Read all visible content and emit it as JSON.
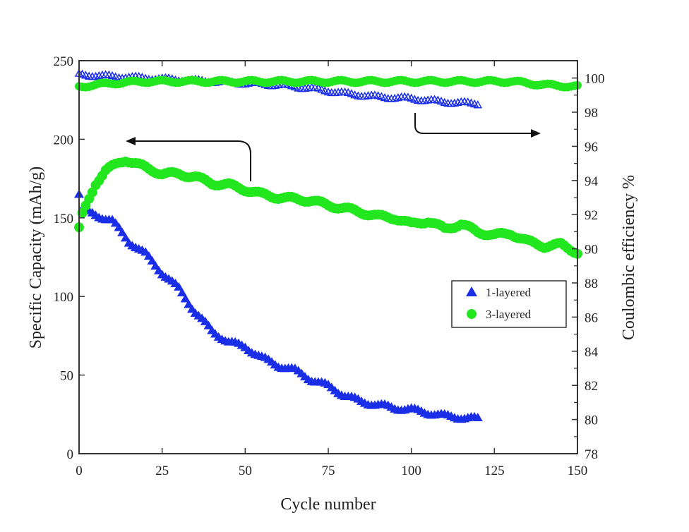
{
  "chart_data": {
    "type": "scatter",
    "xlabel": "Cycle number",
    "ylabel": "Specific Capacity (mAh/g)",
    "y2label": "Coulombic efficiency %",
    "xlim": [
      0,
      150
    ],
    "ylim": [
      0,
      250
    ],
    "y2lim": [
      78,
      101.2
    ],
    "xticks": [
      0,
      25,
      50,
      75,
      100,
      125,
      150
    ],
    "yticks": [
      0,
      50,
      100,
      150,
      200,
      250
    ],
    "y2ticks": [
      78,
      80,
      82,
      84,
      86,
      88,
      90,
      92,
      94,
      96,
      98,
      100
    ],
    "legend": {
      "placement": "center-right",
      "entries": [
        "1-layered",
        "3-layered"
      ]
    },
    "colors": {
      "1-layered": "#1a2ee8",
      "3-layered": "#22e61e"
    },
    "series": [
      {
        "name": "1-layered",
        "axis": "capacity",
        "marker": "triangle",
        "x": [
          0,
          1,
          5,
          10,
          15,
          20,
          25,
          30,
          35,
          40,
          45,
          50,
          55,
          60,
          65,
          70,
          75,
          80,
          85,
          90,
          95,
          100,
          105,
          110,
          115,
          120
        ],
        "y": [
          165,
          155,
          152,
          148,
          135,
          127,
          115,
          105,
          90,
          78,
          71,
          68,
          61,
          56,
          53,
          47,
          43,
          37,
          33,
          31,
          29,
          28,
          26,
          24,
          23,
          22
        ]
      },
      {
        "name": "3-layered",
        "axis": "capacity",
        "marker": "circle",
        "x": [
          0,
          1,
          3,
          5,
          8,
          12,
          14,
          20,
          25,
          30,
          35,
          40,
          45,
          50,
          55,
          60,
          70,
          75,
          80,
          90,
          95,
          100,
          105,
          110,
          115,
          120,
          125,
          130,
          135,
          140,
          145,
          150
        ],
        "y": [
          143,
          152,
          162,
          172,
          180,
          185,
          187,
          182,
          178,
          178,
          176,
          172,
          171,
          168,
          165,
          163,
          161,
          158,
          156,
          151,
          150,
          146,
          148,
          143,
          146,
          141,
          139,
          140,
          135,
          132,
          133,
          128
        ]
      },
      {
        "name": "1-layered",
        "axis": "efficiency",
        "marker": "open-triangle",
        "x": [
          0,
          10,
          20,
          30,
          40,
          50,
          60,
          70,
          80,
          90,
          100,
          110,
          120
        ],
        "y": [
          100.2,
          100.1,
          100.0,
          99.9,
          99.8,
          99.7,
          99.6,
          99.4,
          99.1,
          98.9,
          98.8,
          98.6,
          98.5
        ]
      },
      {
        "name": "3-layered",
        "axis": "efficiency",
        "marker": "circle",
        "x": [
          0,
          10,
          20,
          30,
          40,
          50,
          60,
          70,
          80,
          90,
          100,
          110,
          120,
          130,
          140,
          150
        ],
        "y": [
          99.5,
          99.7,
          99.8,
          99.8,
          99.8,
          99.8,
          99.8,
          99.8,
          99.8,
          99.8,
          99.8,
          99.8,
          99.8,
          99.8,
          99.6,
          99.5
        ]
      }
    ]
  }
}
